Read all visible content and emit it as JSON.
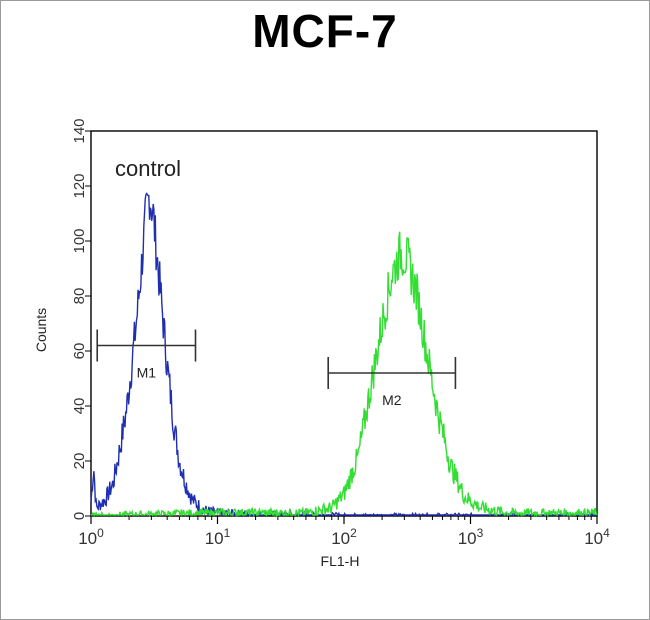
{
  "chart_data": {
    "type": "histogram",
    "title": "MCF-7",
    "xlabel": "FL1-H",
    "ylabel": "Counts",
    "x_scale": "log",
    "xlim": [
      1,
      10000
    ],
    "ylim": [
      0,
      140
    ],
    "x_ticks": [
      {
        "value": 1,
        "base": "10",
        "exp": "0"
      },
      {
        "value": 10,
        "base": "10",
        "exp": "1"
      },
      {
        "value": 100,
        "base": "10",
        "exp": "2"
      },
      {
        "value": 1000,
        "base": "10",
        "exp": "3"
      },
      {
        "value": 10000,
        "base": "10",
        "exp": "4"
      }
    ],
    "y_ticks": [
      0,
      20,
      40,
      60,
      80,
      100,
      120,
      140
    ],
    "grid": false,
    "annotation": "control",
    "series": [
      {
        "color": "#1f2fb0",
        "peak_x": 2.9,
        "peak_count": 117,
        "log_sigma": 0.17,
        "points": [
          [
            1,
            5
          ],
          [
            1.05,
            18
          ],
          [
            1.1,
            3
          ],
          [
            1.3,
            6
          ],
          [
            1.5,
            12
          ],
          [
            1.7,
            25
          ],
          [
            1.9,
            38
          ],
          [
            2.1,
            55
          ],
          [
            2.3,
            72
          ],
          [
            2.5,
            90
          ],
          [
            2.7,
            108
          ],
          [
            2.9,
            117
          ],
          [
            3.1,
            110
          ],
          [
            3.3,
            96
          ],
          [
            3.6,
            78
          ],
          [
            4.0,
            55
          ],
          [
            4.5,
            34
          ],
          [
            5.0,
            20
          ],
          [
            5.6,
            12
          ],
          [
            6.3,
            6
          ],
          [
            7.0,
            4
          ],
          [
            8.0,
            2
          ],
          [
            10,
            1
          ],
          [
            20,
            0.5
          ],
          [
            100,
            0
          ]
        ]
      },
      {
        "color": "#33dd33",
        "peak_x": 290,
        "peak_count": 97,
        "log_sigma": 0.24,
        "points": [
          [
            1,
            0
          ],
          [
            10,
            1
          ],
          [
            50,
            1
          ],
          [
            80,
            3
          ],
          [
            100,
            8
          ],
          [
            130,
            22
          ],
          [
            160,
            45
          ],
          [
            200,
            70
          ],
          [
            240,
            88
          ],
          [
            280,
            96
          ],
          [
            320,
            93
          ],
          [
            380,
            80
          ],
          [
            450,
            60
          ],
          [
            550,
            38
          ],
          [
            700,
            18
          ],
          [
            900,
            7
          ],
          [
            1200,
            3
          ],
          [
            2000,
            1
          ],
          [
            5000,
            1
          ],
          [
            10000,
            1
          ]
        ]
      }
    ],
    "markers": [
      {
        "label": "M1",
        "x_start": 1.12,
        "x_end": 6.7,
        "y": 62
      },
      {
        "label": "M2",
        "x_start": 75,
        "x_end": 760,
        "y": 52
      }
    ]
  }
}
